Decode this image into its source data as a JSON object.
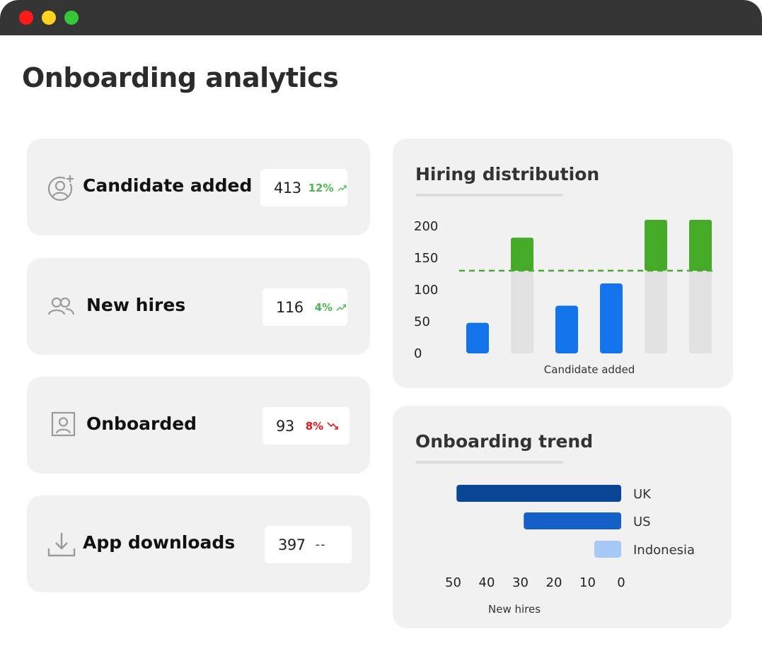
{
  "page": {
    "title": "Onboarding analytics"
  },
  "window": {
    "controls": [
      "close",
      "minimize",
      "maximize"
    ],
    "colors": {
      "close": "#ff1a1a",
      "minimize": "#ffd21f",
      "maximize": "#37c837",
      "titlebar": "#353535"
    }
  },
  "stats": [
    {
      "label": "Candidate added",
      "icon": "user-plus-icon",
      "value": "413",
      "change": "12%",
      "trend": "up"
    },
    {
      "label": "New hires",
      "icon": "users-icon",
      "value": "116",
      "change": "4%",
      "trend": "up"
    },
    {
      "label": "Onboarded",
      "icon": "id-badge-icon",
      "value": "93",
      "change": "8%",
      "trend": "down"
    },
    {
      "label": "App downloads",
      "icon": "download-icon",
      "value": "397",
      "change": "--",
      "trend": "none"
    }
  ],
  "colors": {
    "up": "#4db84d",
    "down": "#e8141c",
    "bar_blue": "#1273ea",
    "bar_green": "#44aa28",
    "bar_bg": "#e2e2e2",
    "uk": "#0a4596",
    "us": "#1560c6",
    "indonesia": "#a7c8f4"
  },
  "chart_data": [
    {
      "type": "bar",
      "title": "Hiring distribution",
      "xlabel": "Candidate added",
      "ylabel": "",
      "ylim": [
        0,
        200
      ],
      "yticks": [
        200,
        150,
        100,
        50,
        0
      ],
      "values": [
        48,
        182,
        75,
        110,
        210,
        210
      ],
      "reference_line": 130,
      "reference_line_style": "dashed",
      "reference_line_color": "#44aa28"
    },
    {
      "type": "bar",
      "orientation": "horizontal",
      "title": "Onboarding trend",
      "xlabel": "New hires",
      "ylabel": "",
      "xlim": [
        0,
        50
      ],
      "x_reversed": true,
      "xticks": [
        50,
        40,
        30,
        20,
        10,
        0
      ],
      "categories": [
        "UK",
        "US",
        "Indonesia"
      ],
      "values": [
        49,
        29,
        8
      ]
    }
  ]
}
